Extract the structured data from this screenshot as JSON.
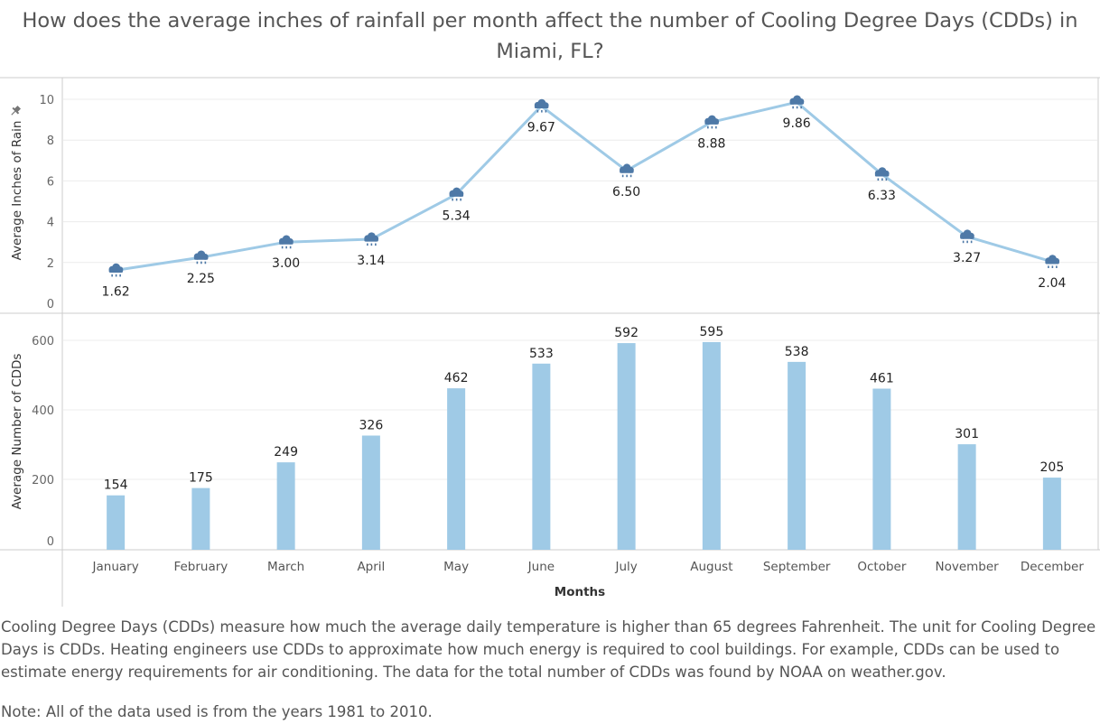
{
  "title": "How does the average inches of rainfall per month affect the number of Cooling Degree Days (CDDs) in Miami, FL?",
  "description": "Cooling Degree Days (CDDs) measure how much the average daily temperature is higher than 65 degrees Fahrenheit. The unit for Cooling Degree Days is CDDs. Heating engineers use CDDs to approximate how much energy is required to cool buildings. For example, CDDs can be used to estimate energy requirements for air conditioning. The data for the total number of CDDs was found by NOAA on weather.gov.",
  "note": "Note: All of the data used is from the years 1981 to 2010.",
  "icons": {
    "marker": "rain-cloud-icon",
    "pin": "pin-icon"
  },
  "colors": {
    "line": "#9fcae6",
    "bar": "#9fcae6",
    "marker": "#4e79a7"
  },
  "chart_data": [
    {
      "type": "line",
      "ylabel": "Average Inches of Rain",
      "xlabel": "",
      "ylim": [
        0,
        10
      ],
      "yticks": [
        0,
        2,
        4,
        6,
        8,
        10
      ],
      "categories": [
        "January",
        "February",
        "March",
        "April",
        "May",
        "June",
        "July",
        "August",
        "September",
        "October",
        "November",
        "December"
      ],
      "values": [
        1.62,
        2.25,
        3.0,
        3.14,
        5.34,
        9.67,
        6.5,
        8.88,
        9.86,
        6.33,
        3.27,
        2.04
      ],
      "labels": [
        "1.62",
        "2.25",
        "3.00",
        "3.14",
        "5.34",
        "9.67",
        "6.50",
        "8.88",
        "9.86",
        "6.33",
        "3.27",
        "2.04"
      ],
      "grid": true
    },
    {
      "type": "bar",
      "ylabel": "Average Number of CDDs",
      "xlabel": "Months",
      "ylim": [
        0,
        600
      ],
      "yticks": [
        0,
        200,
        400,
        600
      ],
      "categories": [
        "January",
        "February",
        "March",
        "April",
        "May",
        "June",
        "July",
        "August",
        "September",
        "October",
        "November",
        "December"
      ],
      "values": [
        154,
        175,
        249,
        326,
        462,
        533,
        592,
        595,
        538,
        461,
        301,
        205
      ],
      "grid": true
    }
  ]
}
